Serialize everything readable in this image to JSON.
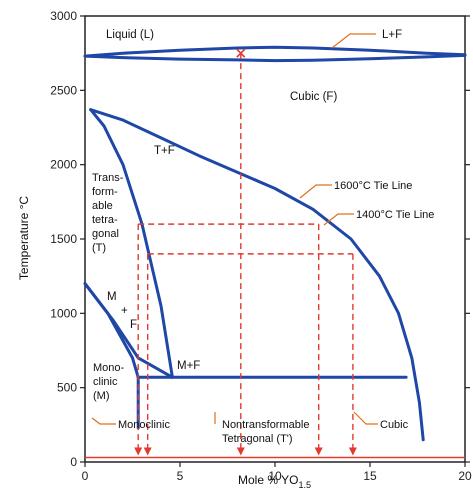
{
  "chart_data": {
    "type": "phase-diagram",
    "xlabel": "Mole % YO",
    "xlabel_sub": "1.5",
    "ylabel": "Temperature °C",
    "xlim": [
      0,
      20
    ],
    "ylim": [
      0,
      3000
    ],
    "x_ticks": [
      "0",
      "5",
      "10",
      "15",
      "20"
    ],
    "y_ticks": [
      "0",
      "500",
      "1000",
      "1500",
      "2000",
      "2500",
      "3000"
    ],
    "regions": {
      "liquid": "Liquid (L)",
      "lf": "L+F",
      "cubic_f": "Cubic (F)",
      "tf": "T+F",
      "trans_1": "Trans-",
      "trans_2": "form-",
      "trans_3": "able",
      "trans_4": "tetra-",
      "trans_5": "gonal",
      "trans_6": "(T)",
      "mf_m": "M",
      "mf_plus": "+",
      "mf_f": "F",
      "mono_1": "Mono-",
      "mono_2": "clinic",
      "mono_3": "(M)",
      "m_plus_f": "M+F"
    },
    "annotations": {
      "tie1600": "1600°C Tie Line",
      "tie1400": "1400°C Tie Line",
      "monoclinic": "Monoclinic",
      "nontrans_1": "Nontransformable",
      "nontrans_2": "Tetragonal (T')",
      "cubic": "Cubic"
    },
    "curves": {
      "liquidus_top": [
        [
          0,
          2730
        ],
        [
          2,
          2750
        ],
        [
          5,
          2770
        ],
        [
          8,
          2785
        ],
        [
          10,
          2790
        ],
        [
          12,
          2785
        ],
        [
          15,
          2770
        ],
        [
          18,
          2750
        ],
        [
          20,
          2740
        ]
      ],
      "liquidus_bottom": [
        [
          0,
          2730
        ],
        [
          2,
          2720
        ],
        [
          5,
          2710
        ],
        [
          8,
          2705
        ],
        [
          10,
          2700
        ],
        [
          12,
          2703
        ],
        [
          15,
          2712
        ],
        [
          18,
          2725
        ],
        [
          20,
          2735
        ]
      ],
      "cubic_boundary": [
        [
          0.3,
          2370
        ],
        [
          2,
          2300
        ],
        [
          4,
          2180
        ],
        [
          6,
          2060
        ],
        [
          8,
          1950
        ],
        [
          10,
          1840
        ],
        [
          12,
          1700
        ],
        [
          14,
          1500
        ],
        [
          15.5,
          1250
        ],
        [
          16.5,
          1000
        ],
        [
          17.2,
          700
        ],
        [
          17.6,
          400
        ],
        [
          17.8,
          150
        ]
      ],
      "tf_boundary": [
        [
          0.3,
          2370
        ],
        [
          1,
          2260
        ],
        [
          2,
          2000
        ],
        [
          3,
          1600
        ],
        [
          4,
          1050
        ],
        [
          4.6,
          570
        ]
      ],
      "monoclinic_boundary": [
        [
          0,
          1200
        ],
        [
          1.5,
          950
        ],
        [
          2.8,
          700
        ],
        [
          4.6,
          570
        ]
      ],
      "t_mf_boundary": [
        [
          0,
          1200
        ],
        [
          1.2,
          1000
        ],
        [
          2.5,
          700
        ],
        [
          2.8,
          570
        ]
      ],
      "eutectoid_line": [
        [
          2.8,
          570
        ],
        [
          16.9,
          570
        ]
      ],
      "mono_vertical": [
        [
          2.8,
          570
        ],
        [
          2.8,
          230
        ]
      ]
    },
    "tie_lines": [
      {
        "label": "1600°C Tie Line",
        "y": 1600,
        "x1": 2.8,
        "x2": 12.3
      },
      {
        "label": "1400°C Tie Line",
        "y": 1400,
        "x1": 3.3,
        "x2": 14.1
      }
    ],
    "marker": {
      "x": 8.2,
      "y": 2750
    },
    "drop_lines": [
      {
        "x": 2.8,
        "from": 1600
      },
      {
        "x": 3.3,
        "from": 1400
      },
      {
        "x": 8.2,
        "from": 2750
      },
      {
        "x": 12.3,
        "from": 1600
      },
      {
        "x": 14.1,
        "from": 1400
      }
    ],
    "room_temp_line": {
      "y": 30,
      "x1": 0,
      "x2": 20
    },
    "colors": {
      "phase_line": "#1f47a8",
      "tie_line": "#e23a2e",
      "axis": "#222222",
      "annotation_line": "#e0701a"
    }
  }
}
